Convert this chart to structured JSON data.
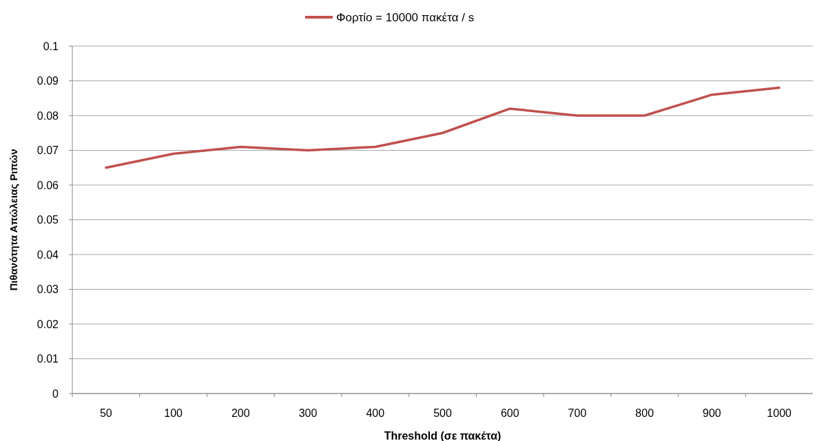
{
  "chart_data": {
    "type": "line",
    "xlabel": "Threshold (σε πακέτα)",
    "ylabel": "Πιθανότητα Απώλειας Ριπών",
    "categories": [
      "50",
      "100",
      "200",
      "300",
      "400",
      "500",
      "600",
      "700",
      "800",
      "900",
      "1000"
    ],
    "series": [
      {
        "name": "Φορτίο = 10000 πακέτα / s",
        "color": "#c0504d",
        "values": [
          0.065,
          0.069,
          0.071,
          0.07,
          0.071,
          0.075,
          0.082,
          0.08,
          0.08,
          0.086,
          0.088
        ]
      }
    ],
    "ylim": [
      0,
      0.1
    ],
    "yticks": [
      0,
      0.01,
      0.02,
      0.03,
      0.04,
      0.05,
      0.06,
      0.07,
      0.08,
      0.09,
      0.1
    ],
    "grid": "y",
    "legend": "top",
    "marker": "none",
    "line_style": "solid"
  }
}
